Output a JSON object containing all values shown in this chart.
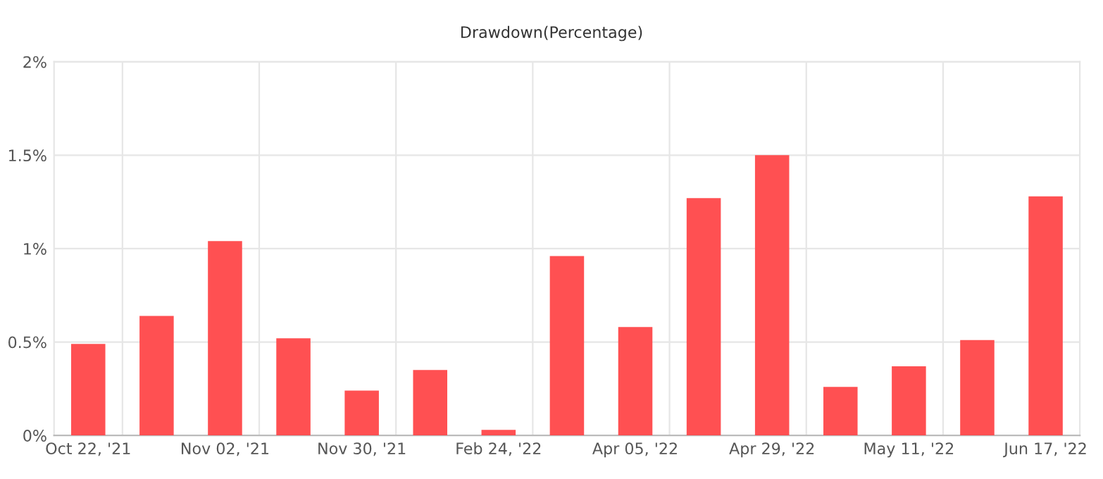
{
  "chart_data": {
    "type": "bar",
    "title": "Drawdown(Percentage)",
    "categories": [
      "Oct 22, '21",
      null,
      "Nov 02, '21",
      null,
      "Nov 30, '21",
      null,
      "Feb 24, '22",
      null,
      "Apr 05, '22",
      null,
      "Apr 29, '22",
      null,
      "May 11, '22",
      null,
      "Jun 17, '22"
    ],
    "values": [
      0.49,
      0.64,
      1.04,
      0.52,
      0.24,
      0.35,
      0.03,
      0.96,
      0.58,
      1.27,
      1.5,
      0.26,
      0.37,
      0.51,
      1.28
    ],
    "color": "#ff4c4f",
    "ylim": [
      0,
      2
    ],
    "yticks": [
      {
        "value": 0,
        "label": "0%"
      },
      {
        "value": 0.5,
        "label": "0.5%"
      },
      {
        "value": 1,
        "label": "1%"
      },
      {
        "value": 1.5,
        "label": "1.5%"
      },
      {
        "value": 2,
        "label": "2%"
      }
    ],
    "grid": true
  }
}
